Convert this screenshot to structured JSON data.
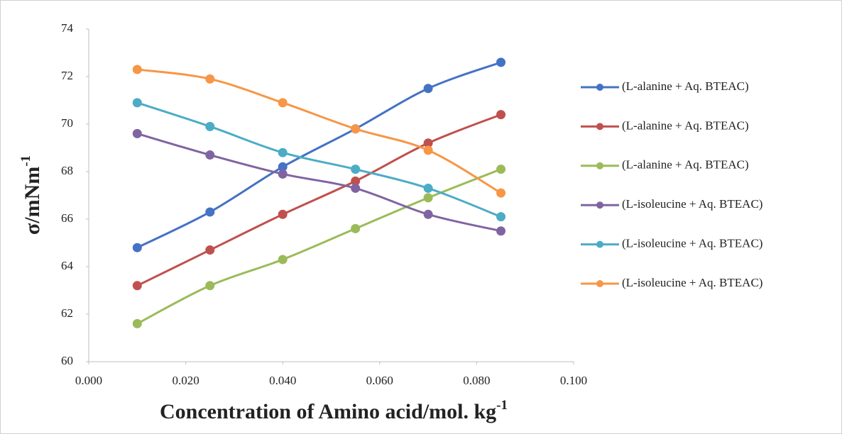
{
  "chart_data": {
    "type": "line",
    "x_label": [
      "Concentration of Amino acid/mol. kg",
      "-1"
    ],
    "y_label": [
      "σ/mNm",
      "-1"
    ],
    "x": [
      0.01,
      0.025,
      0.04,
      0.055,
      0.07,
      0.085
    ],
    "series": [
      {
        "name": "(L-alanine + Aq. BTEAC)",
        "color": "#4472c4",
        "values": [
          64.8,
          66.3,
          68.2,
          69.8,
          71.5,
          72.6
        ]
      },
      {
        "name": "(L-alanine + Aq. BTEAC)",
        "color": "#c0504d",
        "values": [
          63.2,
          64.7,
          66.2,
          67.6,
          69.2,
          70.4
        ]
      },
      {
        "name": "(L-alanine + Aq. BTEAC)",
        "color": "#9bbb59",
        "values": [
          61.6,
          63.2,
          64.3,
          65.6,
          66.9,
          68.1
        ]
      },
      {
        "name": "(L-isoleucine + Aq. BTEAC)",
        "color": "#8064a2",
        "values": [
          69.6,
          68.7,
          67.9,
          67.3,
          66.2,
          65.5
        ]
      },
      {
        "name": "(L-isoleucine + Aq. BTEAC)",
        "color": "#4bacc6",
        "values": [
          70.9,
          69.9,
          68.8,
          68.1,
          67.3,
          66.1
        ]
      },
      {
        "name": "(L-isoleucine + Aq. BTEAC)",
        "color": "#f79646",
        "values": [
          72.3,
          71.9,
          70.9,
          69.8,
          68.9,
          67.1
        ]
      }
    ],
    "xlim": [
      0,
      0.1
    ],
    "xticks": [
      {
        "value": 0,
        "label": "0.000"
      },
      {
        "value": 0.02,
        "label": "0.020"
      },
      {
        "value": 0.04,
        "label": "0.040"
      },
      {
        "value": 0.06,
        "label": "0.060"
      },
      {
        "value": 0.08,
        "label": "0.080"
      },
      {
        "value": 0.1,
        "label": "0.100"
      }
    ],
    "ylim": [
      60,
      74
    ],
    "yticks": [
      60,
      62,
      64,
      66,
      68,
      70,
      72,
      74
    ],
    "grid": false,
    "legend": "right"
  }
}
